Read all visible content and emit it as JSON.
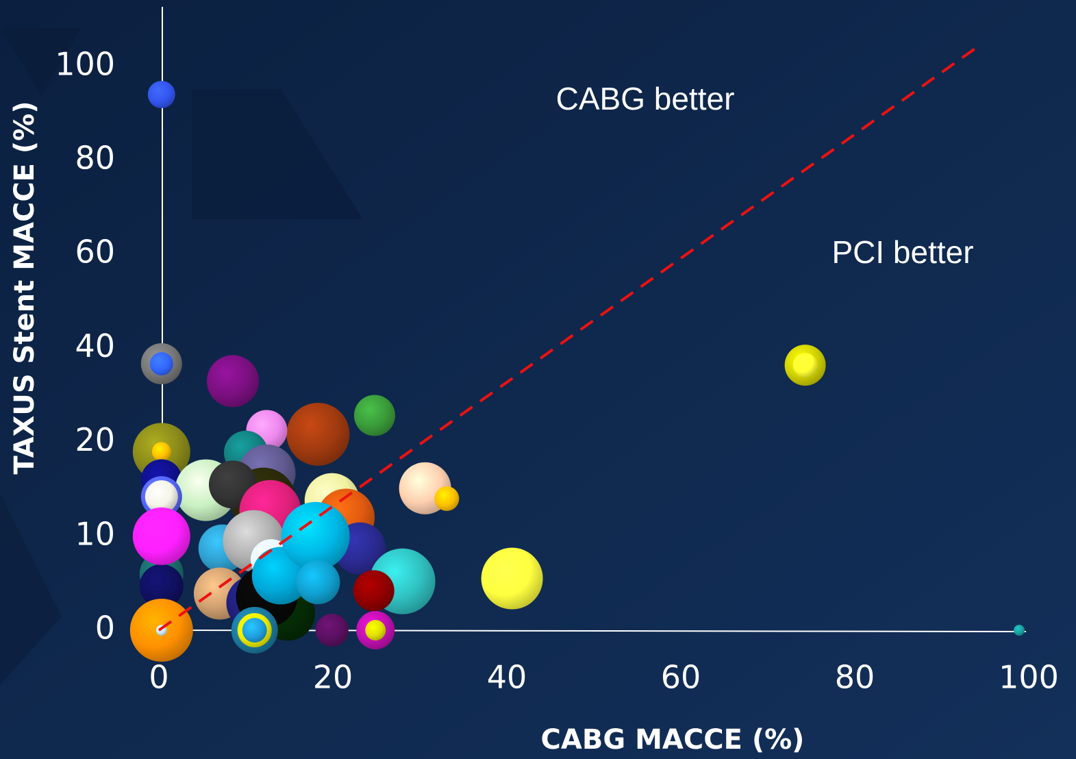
{
  "chart_data": {
    "type": "bubble",
    "xlabel": "CABG MACCE (%)",
    "ylabel": "TAXUS Stent MACCE (%)",
    "annotations": [
      "CABG better",
      "PCI better"
    ],
    "xlim": [
      0,
      100
    ],
    "xticks": [
      0,
      20,
      40,
      60,
      80,
      100
    ],
    "ylim": [
      0,
      112
    ],
    "yticks": [
      0,
      10,
      20,
      40,
      60,
      80,
      100
    ],
    "x": [
      0.3,
      0.3,
      0.3,
      8.5,
      24.8,
      18.3,
      12.4,
      10,
      12.4,
      0.3,
      0.3,
      0.3,
      5.4,
      12,
      8.5,
      19.9,
      21.5,
      30.6,
      33.1,
      0.3,
      0.3,
      0.3,
      0.3,
      0.3,
      12.8,
      7.3,
      10.9,
      23.1,
      28,
      40.6,
      7,
      24.7,
      14.8,
      10.9,
      12.4,
      12.9,
      14,
      18,
      18.3,
      0.3,
      0.3,
      11,
      11,
      11,
      19.9,
      24.9,
      24.9,
      74.3,
      74.3,
      98.9
    ],
    "y": [
      94,
      36.7,
      36.7,
      33,
      25.7,
      21.7,
      22.5,
      18.9,
      16.7,
      19,
      19,
      16,
      14.9,
      13.8,
      15.5,
      13.8,
      12,
      15.1,
      14,
      14.2,
      14.2,
      6,
      4.7,
      10,
      12.7,
      8.7,
      9.5,
      8.7,
      5.2,
      5.5,
      3.9,
      4.2,
      1.8,
      2.9,
      3.6,
      7.5,
      5.8,
      10,
      5.1,
      0,
      0,
      0,
      0,
      0,
      0,
      0,
      0,
      36.4,
      36.4,
      0
    ],
    "sizes": [
      20,
      30,
      17,
      38,
      30,
      46,
      30,
      32,
      42,
      42,
      14,
      30,
      45,
      48,
      35,
      40,
      42,
      38,
      18,
      30,
      24,
      32,
      32,
      42,
      45,
      35,
      45,
      38,
      48,
      45,
      38,
      30,
      40,
      40,
      45,
      30,
      42,
      50,
      32,
      46,
      8,
      34,
      25,
      18,
      24,
      28,
      15,
      30,
      18,
      8
    ],
    "colors": [
      "#3355ee",
      "#777777",
      "#3366ff",
      "#7a1080",
      "#3a9a3a",
      "#a03a10",
      "#ee88ee",
      "#138080",
      "#605a90",
      "#8a8a1a",
      "#ffc000",
      "#10108a",
      "#c8f0c0",
      "#2a2a0a",
      "#333333",
      "#f0f0a0",
      "#e05a10",
      "#ffd0b0",
      "#ffc000",
      "#5566ff",
      "#f4f4e8",
      "#1a6a6a",
      "#101060",
      "#ff20ff",
      "#e0207a",
      "#30a0d0",
      "#b0b0b0",
      "#2a2a90",
      "#30c0c0",
      "#ffff40",
      "#d0a070",
      "#900000",
      "#052a05",
      "#20207a",
      "#080808",
      "#e8f8ff",
      "#00a8d8",
      "#00b8e8",
      "#10a0d0",
      "#ff9000",
      "#c8e8f0",
      "#1c7aa0",
      "#f0f000",
      "#20a0e0",
      "#5a1060",
      "#c010b0",
      "#e0e000",
      "#d0d000",
      "#ffff30",
      "#1aa0a0"
    ],
    "reference_line": {
      "x": [
        0,
        94
      ],
      "y": [
        0,
        104
      ],
      "color": "#ee1111",
      "style": "dashed"
    }
  }
}
